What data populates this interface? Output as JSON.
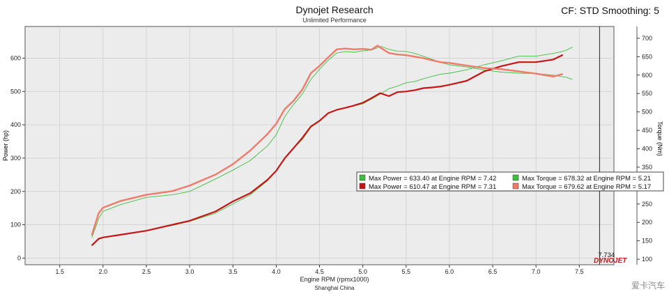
{
  "header": {
    "title": "Dynojet Research",
    "subtitle": "Unlimited Performance",
    "cf_label": "CF: STD Smoothing: 5"
  },
  "footer": {
    "x_caption": "Engine RPM (rpmx1000)",
    "location": "Shanghai China",
    "cursor_value": "7.734",
    "logo_text": "DYNOJET",
    "watermark": "爱卡汽车"
  },
  "colors": {
    "run1": "#3fbf3f",
    "run2_power": "#c81414",
    "run2_torque": "#f07a6a",
    "plot_bg": "#ececec",
    "grid": "#cfcfcf"
  },
  "chart_data": {
    "type": "line",
    "title": "Dynojet Research",
    "subtitle": "Unlimited Performance",
    "xlabel": "Engine RPM (rpmx1000)",
    "ylabel": "Power (hp)",
    "y2label": "Torque (Nm)",
    "xlim": [
      1.1,
      7.9
    ],
    "ylim": [
      -20,
      695
    ],
    "y2lim": [
      85,
      732
    ],
    "xticks": [
      "1.5",
      "2.0",
      "2.5",
      "3.0",
      "3.5",
      "4.0",
      "4.5",
      "5.0",
      "5.5",
      "6.0",
      "6.5",
      "7.0",
      "7.5"
    ],
    "yticks": [
      "0",
      "100",
      "200",
      "300",
      "400",
      "500",
      "600"
    ],
    "y2ticks": [
      "100",
      "150",
      "200",
      "250",
      "300",
      "350",
      "400",
      "450",
      "500",
      "550",
      "600",
      "650",
      "700"
    ],
    "grid": true,
    "legend_position": "right",
    "legend": [
      {
        "label": "Max Power = 633.40 at Engine RPM = 7.42",
        "color": "#3fbf3f"
      },
      {
        "label": "Max Torque = 678.32 at Engine RPM = 5.21",
        "color": "#3fbf3f"
      },
      {
        "label": "Max Power = 610.47 at Engine RPM = 7.31",
        "color": "#c81414"
      },
      {
        "label": "Max Torque = 679.62 at Engine RPM = 5.17",
        "color": "#f07a6a"
      }
    ],
    "series": [
      {
        "axis": "left",
        "x": [
          1.87,
          1.95,
          2.0,
          2.2,
          2.5,
          2.8,
          3.0,
          3.3,
          3.5,
          3.7,
          3.9,
          4.0,
          4.1,
          4.2,
          4.3,
          4.4,
          4.5,
          4.6,
          4.7,
          4.8,
          4.9,
          5.0,
          5.1,
          5.2,
          5.3,
          5.4,
          5.5,
          5.6,
          5.7,
          5.8,
          5.9,
          6.0,
          6.2,
          6.4,
          6.6,
          6.8,
          7.0,
          7.2,
          7.3,
          7.35,
          7.42
        ],
        "values": [
          36,
          56,
          62,
          70,
          82,
          98,
          110,
          135,
          162,
          190,
          232,
          262,
          298,
          330,
          355,
          392,
          410,
          436,
          445,
          451,
          457,
          463,
          477,
          492,
          508,
          516,
          526,
          530,
          538,
          545,
          552,
          555,
          565,
          580,
          592,
          606,
          606,
          614,
          620,
          624,
          633
        ]
      },
      {
        "axis": "right",
        "x": [
          1.87,
          1.95,
          2.0,
          2.2,
          2.5,
          2.8,
          3.0,
          3.3,
          3.5,
          3.7,
          3.9,
          4.0,
          4.1,
          4.2,
          4.3,
          4.4,
          4.5,
          4.6,
          4.7,
          4.8,
          4.9,
          5.0,
          5.1,
          5.21,
          5.3,
          5.4,
          5.5,
          5.6,
          5.7,
          5.8,
          5.9,
          6.0,
          6.2,
          6.4,
          6.6,
          6.8,
          7.0,
          7.2,
          7.3,
          7.35,
          7.42
        ],
        "values": [
          158,
          210,
          230,
          248,
          268,
          275,
          284,
          318,
          342,
          368,
          408,
          438,
          488,
          520,
          548,
          588,
          616,
          640,
          660,
          664,
          662,
          666,
          668,
          678,
          670,
          665,
          664,
          659,
          651,
          643,
          634,
          628,
          622,
          614,
          608,
          605,
          604,
          600,
          596,
          594,
          588
        ]
      },
      {
        "axis": "left",
        "x": [
          1.87,
          1.95,
          2.0,
          2.2,
          2.5,
          2.8,
          3.0,
          3.3,
          3.5,
          3.7,
          3.9,
          4.0,
          4.1,
          4.2,
          4.3,
          4.4,
          4.5,
          4.6,
          4.7,
          4.8,
          4.9,
          5.0,
          5.1,
          5.2,
          5.3,
          5.4,
          5.5,
          5.6,
          5.7,
          5.8,
          5.9,
          6.0,
          6.2,
          6.4,
          6.6,
          6.8,
          7.0,
          7.2,
          7.31
        ],
        "values": [
          38,
          58,
          62,
          70,
          82,
          100,
          112,
          140,
          170,
          195,
          235,
          262,
          300,
          330,
          360,
          395,
          412,
          435,
          445,
          451,
          458,
          466,
          480,
          495,
          486,
          498,
          500,
          504,
          510,
          512,
          515,
          520,
          532,
          560,
          576,
          588,
          588,
          596,
          610
        ]
      },
      {
        "axis": "right",
        "x": [
          1.87,
          1.95,
          2.0,
          2.2,
          2.5,
          2.8,
          3.0,
          3.3,
          3.5,
          3.7,
          3.9,
          4.0,
          4.1,
          4.2,
          4.3,
          4.4,
          4.5,
          4.6,
          4.7,
          4.8,
          4.9,
          5.0,
          5.1,
          5.17,
          5.3,
          5.4,
          5.5,
          5.6,
          5.7,
          5.8,
          5.9,
          6.0,
          6.2,
          6.4,
          6.6,
          6.8,
          7.0,
          7.2,
          7.31
        ],
        "values": [
          165,
          225,
          240,
          258,
          275,
          285,
          300,
          330,
          358,
          395,
          440,
          468,
          508,
          530,
          560,
          605,
          625,
          648,
          670,
          672,
          670,
          671,
          669,
          680,
          660,
          656,
          654,
          650,
          646,
          640,
          635,
          633,
          626,
          619,
          616,
          610,
          604,
          596,
          603
        ]
      }
    ]
  }
}
